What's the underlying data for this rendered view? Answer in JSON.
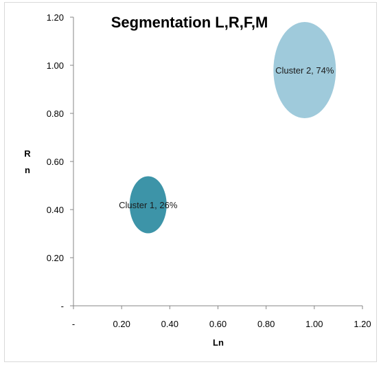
{
  "chart_data": {
    "type": "scatter",
    "title": "Segmentation L,R,F,M",
    "xlabel": "Ln",
    "ylabel_lines": [
      "R",
      "n"
    ],
    "xlim": [
      0,
      1.2
    ],
    "ylim": [
      0,
      1.2
    ],
    "x_ticks": [
      "-",
      "0.20",
      "0.40",
      "0.60",
      "0.80",
      "1.00",
      "1.20"
    ],
    "y_ticks": [
      "-",
      "0.20",
      "0.40",
      "0.60",
      "0.80",
      "1.00",
      "1.20"
    ],
    "grid": false,
    "legend": false,
    "series": [
      {
        "x": 0.31,
        "y": 0.42,
        "share": 0.26,
        "label": "Cluster 1, 26%",
        "color": "#3d94a8"
      },
      {
        "x": 0.96,
        "y": 0.98,
        "share": 0.74,
        "label": "Cluster 2, 74%",
        "color": "#9fcadb"
      }
    ]
  }
}
